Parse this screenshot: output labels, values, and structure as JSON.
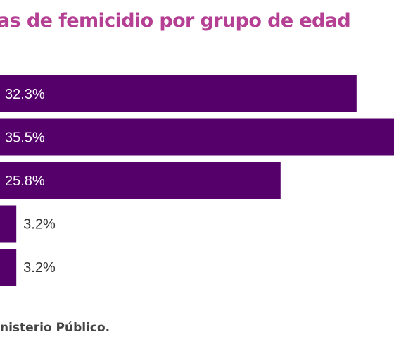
{
  "chart_data": {
    "type": "bar",
    "orientation": "horizontal",
    "title": "as de femicidio por grupo de edad",
    "categories": [
      "",
      "",
      "",
      "",
      ""
    ],
    "values": [
      32.3,
      35.5,
      25.8,
      3.2,
      3.2
    ],
    "data_labels": [
      "32.3%",
      "35.5%",
      "25.8%",
      "3.2%",
      "3.2%"
    ],
    "xlim": [
      0,
      35.5
    ],
    "grid": false,
    "colors": {
      "bar": "#55006a",
      "label_inside": "#ffffff",
      "label_outside": "#333333",
      "title": "#b43f93"
    }
  },
  "source": {
    "text": "nisterio Público."
  }
}
